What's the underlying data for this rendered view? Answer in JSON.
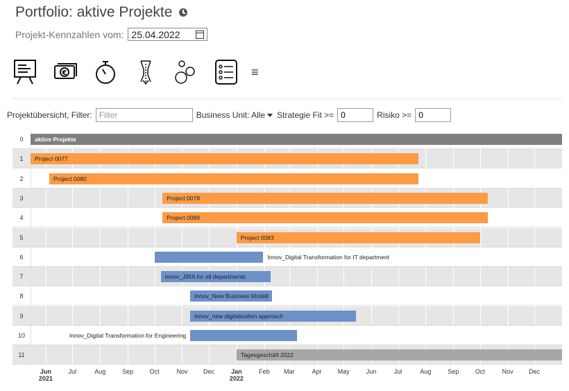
{
  "header": {
    "title": "Portfolio: aktive Projekte",
    "date_label": "Projekt-Kennzahlen vom:",
    "date_value": "25.04.2022"
  },
  "toolbar": {
    "icons": [
      "presentation-board-icon",
      "money-icon",
      "stopwatch-icon",
      "funnel-arrow-icon",
      "bubbles-icon",
      "list-icon",
      "hamburger-menu-icon"
    ],
    "menu_glyph": "≡"
  },
  "filter": {
    "label": "Projektübersicht, Filter:",
    "filter_placeholder": "Filter",
    "business_unit_label": "Business Unit: Alle",
    "strategie_label": "Strategie Fit >=",
    "strategie_value": "0",
    "risiko_label": "Risiko >=",
    "risiko_value": "0"
  },
  "gantt": {
    "colors": {
      "summary": "#7f7f7f",
      "project": "#fd9b45",
      "innov": "#6d91c9",
      "tages": "#a6a6a6"
    },
    "rows": [
      {
        "num": "0",
        "label": "aktive Projekte",
        "start": "2021-05-15",
        "end": "2023-01-01",
        "kind": "summary",
        "label_pos": "inside"
      },
      {
        "num": "1",
        "label": "Project 0077",
        "start": "2021-05-15",
        "end": "2022-07-24",
        "kind": "project",
        "label_pos": "inside"
      },
      {
        "num": "2",
        "label": "Project 0080",
        "start": "2021-06-05",
        "end": "2022-07-24",
        "kind": "project",
        "label_pos": "inside"
      },
      {
        "num": "3",
        "label": "Project 0078",
        "start": "2021-10-10",
        "end": "2022-10-10",
        "kind": "project",
        "label_pos": "inside"
      },
      {
        "num": "4",
        "label": "Project 0089",
        "start": "2021-10-10",
        "end": "2022-10-10",
        "kind": "project",
        "label_pos": "inside"
      },
      {
        "num": "5",
        "label": "Project 0083",
        "start": "2022-01-01",
        "end": "2022-10-01",
        "kind": "project",
        "label_pos": "inside"
      },
      {
        "num": "6",
        "label": "Innov_Digital Transformation for IT department",
        "start": "2021-10-01",
        "end": "2022-01-31",
        "kind": "innov",
        "label_pos": "right"
      },
      {
        "num": "7",
        "label": "Innov_JIRA for all departments",
        "start": "2021-10-08",
        "end": "2022-02-08",
        "kind": "innov",
        "label_pos": "inside"
      },
      {
        "num": "8",
        "label": "Innov_New Business Modell",
        "start": "2021-11-10",
        "end": "2022-02-10",
        "kind": "innov",
        "label_pos": "inside"
      },
      {
        "num": "9",
        "label": "Innov_new digitalisation approach",
        "start": "2021-11-10",
        "end": "2022-05-15",
        "kind": "innov",
        "label_pos": "inside"
      },
      {
        "num": "10",
        "label": "Innov_Digital Transformation for Engineering",
        "start": "2021-11-10",
        "end": "2022-03-10",
        "kind": "innov",
        "label_pos": "left"
      },
      {
        "num": "11",
        "label": "Tagesgeschäft 2022",
        "start": "2022-01-01",
        "end": "2023-01-01",
        "kind": "tages",
        "label_pos": "inside"
      }
    ],
    "axis": [
      {
        "label": "Jun",
        "year": "2021",
        "date": "2021-06-01"
      },
      {
        "label": "Jul",
        "date": "2021-07-01"
      },
      {
        "label": "Aug",
        "date": "2021-08-01"
      },
      {
        "label": "Sep",
        "date": "2021-09-01"
      },
      {
        "label": "Oct",
        "date": "2021-10-01"
      },
      {
        "label": "Nov",
        "date": "2021-11-01"
      },
      {
        "label": "Dec",
        "date": "2021-12-01"
      },
      {
        "label": "Jan",
        "year": "2022",
        "date": "2022-01-01"
      },
      {
        "label": "Feb",
        "date": "2022-02-01"
      },
      {
        "label": "Mar",
        "date": "2022-03-01"
      },
      {
        "label": "Apr",
        "date": "2022-04-01"
      },
      {
        "label": "May",
        "date": "2022-05-01"
      },
      {
        "label": "Jun",
        "date": "2022-06-01"
      },
      {
        "label": "Jul",
        "date": "2022-07-01"
      },
      {
        "label": "Aug",
        "date": "2022-08-01"
      },
      {
        "label": "Sep",
        "date": "2022-09-01"
      },
      {
        "label": "Oct",
        "date": "2022-10-01"
      },
      {
        "label": "Nov",
        "date": "2022-11-01"
      },
      {
        "label": "Dec",
        "date": "2022-12-01"
      }
    ]
  }
}
